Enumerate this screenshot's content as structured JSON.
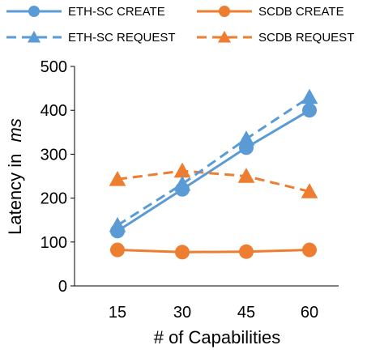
{
  "chart_data": {
    "type": "line",
    "x": [
      15,
      30,
      45,
      60
    ],
    "xlabel": "# of Capabilities",
    "ylabel": "Latency in",
    "ylabel_unit": "ms",
    "ylim": [
      0,
      500
    ],
    "yticks": [
      0,
      100,
      200,
      300,
      400,
      500
    ],
    "grid": false,
    "legend_position": "top",
    "series": [
      {
        "name": "ETH-SC CREATE",
        "values": [
          125,
          220,
          315,
          400
        ],
        "color": "#5b9bd5",
        "line": "solid",
        "marker": "circle"
      },
      {
        "name": "SCDB CREATE",
        "values": [
          82,
          77,
          78,
          82
        ],
        "color": "#ed7d31",
        "line": "solid",
        "marker": "circle"
      },
      {
        "name": "ETH-SC REQUEST",
        "values": [
          138,
          232,
          335,
          430
        ],
        "color": "#5b9bd5",
        "line": "dashed",
        "marker": "triangle"
      },
      {
        "name": "SCDB REQUEST",
        "values": [
          243,
          262,
          250,
          215
        ],
        "color": "#ed7d31",
        "line": "dashed",
        "marker": "triangle"
      }
    ]
  }
}
